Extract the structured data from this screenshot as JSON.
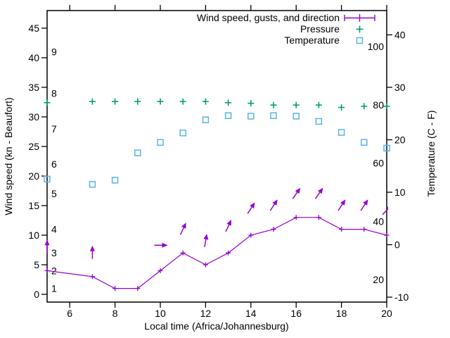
{
  "axes": {
    "x": {
      "label": "Local time (Africa/Johannesburg)",
      "range": [
        5,
        20
      ],
      "tick_values": [
        6,
        8,
        10,
        12,
        14,
        16,
        18,
        20
      ]
    },
    "y_left": {
      "label": "Wind speed (kn - Beaufort)",
      "tick_values": [
        0,
        5,
        10,
        15,
        20,
        25,
        30,
        35,
        40,
        45
      ],
      "beaufort_labels": [
        {
          "label": "1",
          "kn": 1
        },
        {
          "label": "2",
          "kn": 4
        },
        {
          "label": "3",
          "kn": 7
        },
        {
          "label": "4",
          "kn": 11
        },
        {
          "label": "5",
          "kn": 17
        },
        {
          "label": "6",
          "kn": 22
        },
        {
          "label": "7",
          "kn": 28
        },
        {
          "label": "8",
          "kn": 34
        },
        {
          "label": "9",
          "kn": 41
        }
      ]
    },
    "y_right": {
      "label": "Temperature (C - F)",
      "celsius_tick_values": [
        -10,
        0,
        10,
        20,
        30,
        40
      ],
      "fahrenheit_tick_values": [
        20,
        40,
        60,
        80,
        100
      ]
    }
  },
  "legend": {
    "entries": [
      {
        "label": "Wind speed, gusts, and direction",
        "marker": "line-with-plus",
        "color": "#9400d3"
      },
      {
        "label": "Pressure",
        "marker": "plus",
        "color": "#009e73"
      },
      {
        "label": "Temperature",
        "marker": "open-square",
        "color": "#56b4e9"
      }
    ]
  },
  "chart_data": {
    "type": "line",
    "xlabel": "Local time (Africa/Johannesburg)",
    "ylabel_left": "Wind speed (kn - Beaufort)",
    "ylabel_right": "Temperature (C - F)",
    "x_range_hours": [
      5,
      20
    ],
    "y_left_range_kn": [
      -1.3,
      48
    ],
    "y_right_range_c": [
      -11,
      44.5
    ],
    "grid": false,
    "legend_position": "top-right-inside",
    "hours": [
      5,
      7,
      8,
      9,
      10,
      11,
      12,
      13,
      14,
      15,
      16,
      17,
      18,
      19,
      20
    ],
    "series": [
      {
        "name": "Wind speed, gusts, and direction",
        "color": "#9400d3",
        "axis": "left_kn",
        "style": "line-with-plus-markers",
        "values": [
          4,
          3,
          1,
          1,
          4,
          7,
          5,
          7,
          10,
          11,
          13,
          13,
          11,
          11,
          10
        ]
      },
      {
        "name": "Pressure",
        "color": "#009e73",
        "axis": "left_kn_display_scale",
        "style": "plus-points",
        "values": [
          32.4,
          32.6,
          32.6,
          32.6,
          32.6,
          32.6,
          32.6,
          32.4,
          32.3,
          32.0,
          32.0,
          32.0,
          31.6,
          31.8,
          31.8
        ]
      },
      {
        "name": "Temperature",
        "color": "#56b4e9",
        "axis": "right_celsius",
        "style": "open-square-points",
        "values": [
          12.5,
          11.5,
          12.3,
          17.5,
          19.5,
          21.3,
          23.8,
          24.6,
          24.5,
          24.6,
          24.5,
          23.5,
          21.4,
          19.5,
          18.4
        ]
      }
    ],
    "gust_direction_arrows": {
      "color": "#9400d3",
      "note": "arrow centered at (hour, gust_kn), angle_deg measured clockwise from straight up",
      "points": [
        {
          "hour": 5,
          "gust_kn": 8,
          "angle_deg": 0
        },
        {
          "hour": 7,
          "gust_kn": 7,
          "angle_deg": 0
        },
        {
          "hour": 10,
          "gust_kn": 8.3,
          "angle_deg": 90
        },
        {
          "hour": 11,
          "gust_kn": 11,
          "angle_deg": 25
        },
        {
          "hour": 12,
          "gust_kn": 9,
          "angle_deg": 10
        },
        {
          "hour": 13,
          "gust_kn": 11.5,
          "angle_deg": 25
        },
        {
          "hour": 14,
          "gust_kn": 14.5,
          "angle_deg": 33
        },
        {
          "hour": 15,
          "gust_kn": 15,
          "angle_deg": 33
        },
        {
          "hour": 16,
          "gust_kn": 17,
          "angle_deg": 35
        },
        {
          "hour": 17,
          "gust_kn": 17,
          "angle_deg": 35
        },
        {
          "hour": 18,
          "gust_kn": 15,
          "angle_deg": 33
        },
        {
          "hour": 19,
          "gust_kn": 15,
          "angle_deg": 33
        },
        {
          "hour": 20,
          "gust_kn": 14.2,
          "angle_deg": 45
        }
      ]
    }
  }
}
